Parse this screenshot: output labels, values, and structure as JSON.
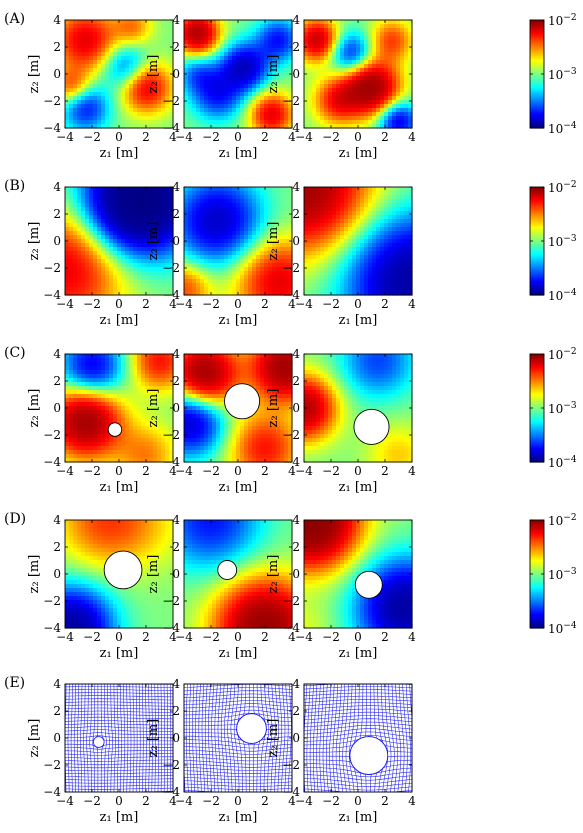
{
  "figure": {
    "row_labels": [
      "(A)",
      "(B)",
      "(C)",
      "(D)",
      "(E)"
    ],
    "axis_tick_labels": [
      "-4",
      "-2",
      "0",
      "2",
      "4"
    ],
    "xlabel": "z₁ [m]",
    "ylabel": "z₂ [m]",
    "colorbar_ticks": [
      "10-2",
      "10-3",
      "10-4"
    ]
  },
  "chart_data": [
    {
      "row": "A",
      "type": "heatmap",
      "xlim": [
        -4,
        4
      ],
      "ylim": [
        -4,
        4
      ],
      "colorscale": "jet",
      "log_range": [
        -4,
        -2
      ],
      "blobs": [
        [
          -2.5,
          2.5,
          0.6,
          1.6
        ],
        [
          -2.5,
          -2.5,
          -0.5,
          1.2
        ],
        [
          2.0,
          -1.0,
          0.6,
          1.3
        ],
        [
          0.5,
          0.5,
          -0.4,
          1.2
        ],
        [
          -3.5,
          -1.0,
          0.4,
          1.0
        ],
        [
          1.0,
          3.5,
          0.3,
          1.0
        ]
      ]
    },
    {
      "row": "A",
      "type": "heatmap",
      "xlim": [
        -4,
        4
      ],
      "ylim": [
        -4,
        4
      ],
      "colorscale": "jet",
      "log_range": [
        -4,
        -2
      ],
      "blobs": [
        [
          -3.0,
          3.0,
          0.8,
          1.1
        ],
        [
          0.5,
          0.5,
          -0.7,
          1.2
        ],
        [
          2.5,
          -3.0,
          0.6,
          1.1
        ],
        [
          -1.5,
          -1.5,
          -0.5,
          1.3
        ],
        [
          3.0,
          2.5,
          -0.5,
          1.1
        ],
        [
          -3.0,
          0.0,
          -0.3,
          1.0
        ]
      ]
    },
    {
      "row": "A",
      "type": "heatmap",
      "xlim": [
        -4,
        4
      ],
      "ylim": [
        -4,
        4
      ],
      "colorscale": "jet",
      "log_range": [
        -4,
        -2
      ],
      "blobs": [
        [
          -3.0,
          2.5,
          0.7,
          1.1
        ],
        [
          1.0,
          -1.0,
          0.9,
          1.4
        ],
        [
          -1.5,
          -2.0,
          0.5,
          1.2
        ],
        [
          2.5,
          2.5,
          0.4,
          1.1
        ],
        [
          -0.5,
          1.5,
          -0.5,
          1.1
        ],
        [
          3.0,
          -3.5,
          -0.6,
          1.0
        ]
      ]
    },
    {
      "row": "B",
      "type": "heatmap",
      "xlim": [
        -4,
        4
      ],
      "ylim": [
        -4,
        4
      ],
      "colorscale": "jet",
      "log_range": [
        -4,
        -2
      ],
      "blobs": [
        [
          1.5,
          3.0,
          -1.4,
          2.6
        ],
        [
          -4.0,
          -2.0,
          0.6,
          3.0
        ]
      ]
    },
    {
      "row": "B",
      "type": "heatmap",
      "xlim": [
        -4,
        4
      ],
      "ylim": [
        -4,
        4
      ],
      "colorscale": "jet",
      "log_range": [
        -4,
        -2
      ],
      "blobs": [
        [
          -1.5,
          1.5,
          -0.7,
          2.2
        ],
        [
          3.0,
          -3.0,
          0.6,
          2.2
        ],
        [
          -4.0,
          -3.5,
          0.4,
          1.4
        ]
      ]
    },
    {
      "row": "B",
      "type": "heatmap",
      "xlim": [
        -4,
        4
      ],
      "ylim": [
        -4,
        4
      ],
      "colorscale": "jet",
      "log_range": [
        -4,
        -2
      ],
      "blobs": [
        [
          -4.0,
          4.0,
          0.9,
          3.2
        ],
        [
          4.0,
          -3.0,
          -0.9,
          3.2
        ]
      ]
    },
    {
      "row": "C",
      "type": "heatmap",
      "xlim": [
        -4,
        4
      ],
      "ylim": [
        -4,
        4
      ],
      "colorscale": "jet",
      "log_range": [
        -4,
        -2
      ],
      "hole": {
        "cx": -0.3,
        "cy": -1.6,
        "r": 0.5
      },
      "blobs": [
        [
          -2.5,
          -1.0,
          0.9,
          1.8
        ],
        [
          -2.0,
          3.0,
          -0.6,
          1.6
        ],
        [
          3.0,
          3.5,
          0.5,
          1.5
        ],
        [
          2.0,
          -3.5,
          0.3,
          1.6
        ]
      ]
    },
    {
      "row": "C",
      "type": "heatmap",
      "xlim": [
        -4,
        4
      ],
      "ylim": [
        -4,
        4
      ],
      "colorscale": "jet",
      "log_range": [
        -4,
        -2
      ],
      "hole": {
        "cx": 0.3,
        "cy": 0.5,
        "r": 1.3
      },
      "blobs": [
        [
          -2.5,
          2.5,
          0.9,
          1.7
        ],
        [
          3.5,
          3.0,
          0.9,
          1.7
        ],
        [
          2.0,
          -3.0,
          0.5,
          1.8
        ],
        [
          -3.5,
          -1.0,
          -0.7,
          1.7
        ]
      ]
    },
    {
      "row": "C",
      "type": "heatmap",
      "xlim": [
        -4,
        4
      ],
      "ylim": [
        -4,
        4
      ],
      "colorscale": "jet",
      "log_range": [
        -4,
        -2
      ],
      "hole": {
        "cx": 1.0,
        "cy": -1.4,
        "r": 1.3
      },
      "blobs": [
        [
          -4.0,
          0.0,
          0.8,
          1.6
        ],
        [
          3.0,
          -3.5,
          0.2,
          1.6
        ],
        [
          1.5,
          3.5,
          -0.4,
          1.9
        ]
      ]
    },
    {
      "row": "D",
      "type": "heatmap",
      "xlim": [
        -4,
        4
      ],
      "ylim": [
        -4,
        4
      ],
      "colorscale": "jet",
      "log_range": [
        -4,
        -2
      ],
      "hole": {
        "cx": 0.3,
        "cy": 0.3,
        "r": 1.4
      },
      "blobs": [
        [
          -3.5,
          -4.0,
          -0.9,
          2.0
        ],
        [
          2.5,
          3.5,
          0.1,
          2.2
        ],
        [
          -1.0,
          4.0,
          0.4,
          2.4
        ]
      ]
    },
    {
      "row": "D",
      "type": "heatmap",
      "xlim": [
        -4,
        4
      ],
      "ylim": [
        -4,
        4
      ],
      "colorscale": "jet",
      "log_range": [
        -4,
        -2
      ],
      "hole": {
        "cx": -0.8,
        "cy": 0.3,
        "r": 0.7
      },
      "blobs": [
        [
          2.0,
          -4.0,
          1.0,
          2.4
        ],
        [
          -2.0,
          4.0,
          -0.5,
          2.5
        ]
      ]
    },
    {
      "row": "D",
      "type": "heatmap",
      "xlim": [
        -4,
        4
      ],
      "ylim": [
        -4,
        4
      ],
      "colorscale": "jet",
      "log_range": [
        -4,
        -2
      ],
      "hole": {
        "cx": 0.8,
        "cy": -0.8,
        "r": 1.0
      },
      "blobs": [
        [
          -3.5,
          4.0,
          1.2,
          2.3
        ],
        [
          3.5,
          -2.5,
          -0.9,
          2.3
        ],
        [
          -4.0,
          -4.0,
          0.1,
          1.5
        ]
      ]
    },
    {
      "row": "E",
      "type": "mesh",
      "xlim": [
        -4,
        4
      ],
      "ylim": [
        -4,
        4
      ],
      "grid_lines": 37,
      "hole": {
        "cx": -1.5,
        "cy": -0.3,
        "r": 0.4
      }
    },
    {
      "row": "E",
      "type": "mesh",
      "xlim": [
        -4,
        4
      ],
      "ylim": [
        -4,
        4
      ],
      "grid_lines": 37,
      "hole": {
        "cx": 1.0,
        "cy": 0.7,
        "r": 1.1
      }
    },
    {
      "row": "E",
      "type": "mesh",
      "xlim": [
        -4,
        4
      ],
      "ylim": [
        -4,
        4
      ],
      "grid_lines": 37,
      "hole": {
        "cx": 0.8,
        "cy": -1.3,
        "r": 1.4
      }
    }
  ]
}
